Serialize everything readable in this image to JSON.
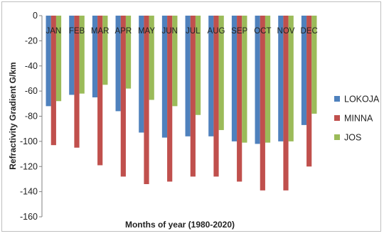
{
  "chart_data": {
    "type": "bar",
    "title": "",
    "xlabel": "Months of year (1980-2020)",
    "ylabel": "Refractivity Gradient G/km",
    "ylim": [
      -160,
      0
    ],
    "yticks": [
      "0",
      "-20",
      "-40",
      "-60",
      "-80",
      "-100",
      "-120",
      "-140",
      "-160"
    ],
    "categories": [
      "JAN",
      "FEB",
      "MAR",
      "APR",
      "MAY",
      "JUN",
      "JUL",
      "AUG",
      "SEP",
      "OCT",
      "NOV",
      "DEC"
    ],
    "category_labels_position": "top",
    "legend_position": "right",
    "grid": false,
    "series": [
      {
        "name": "LOKOJA",
        "color": "#4f81bd",
        "values": [
          -72,
          -63,
          -65,
          -76,
          -93,
          -97,
          -96,
          -96,
          -100,
          -102,
          -100,
          -87
        ]
      },
      {
        "name": "MINNA",
        "color": "#c0504d",
        "values": [
          -103,
          -105,
          -119,
          -128,
          -134,
          -132,
          -128,
          -128,
          -132,
          -139,
          -139,
          -120
        ]
      },
      {
        "name": "JOS",
        "color": "#9bbb59",
        "values": [
          -68,
          -62,
          -55,
          -58,
          -67,
          -72,
          -79,
          -91,
          -101,
          -101,
          -100,
          -78
        ]
      }
    ]
  }
}
